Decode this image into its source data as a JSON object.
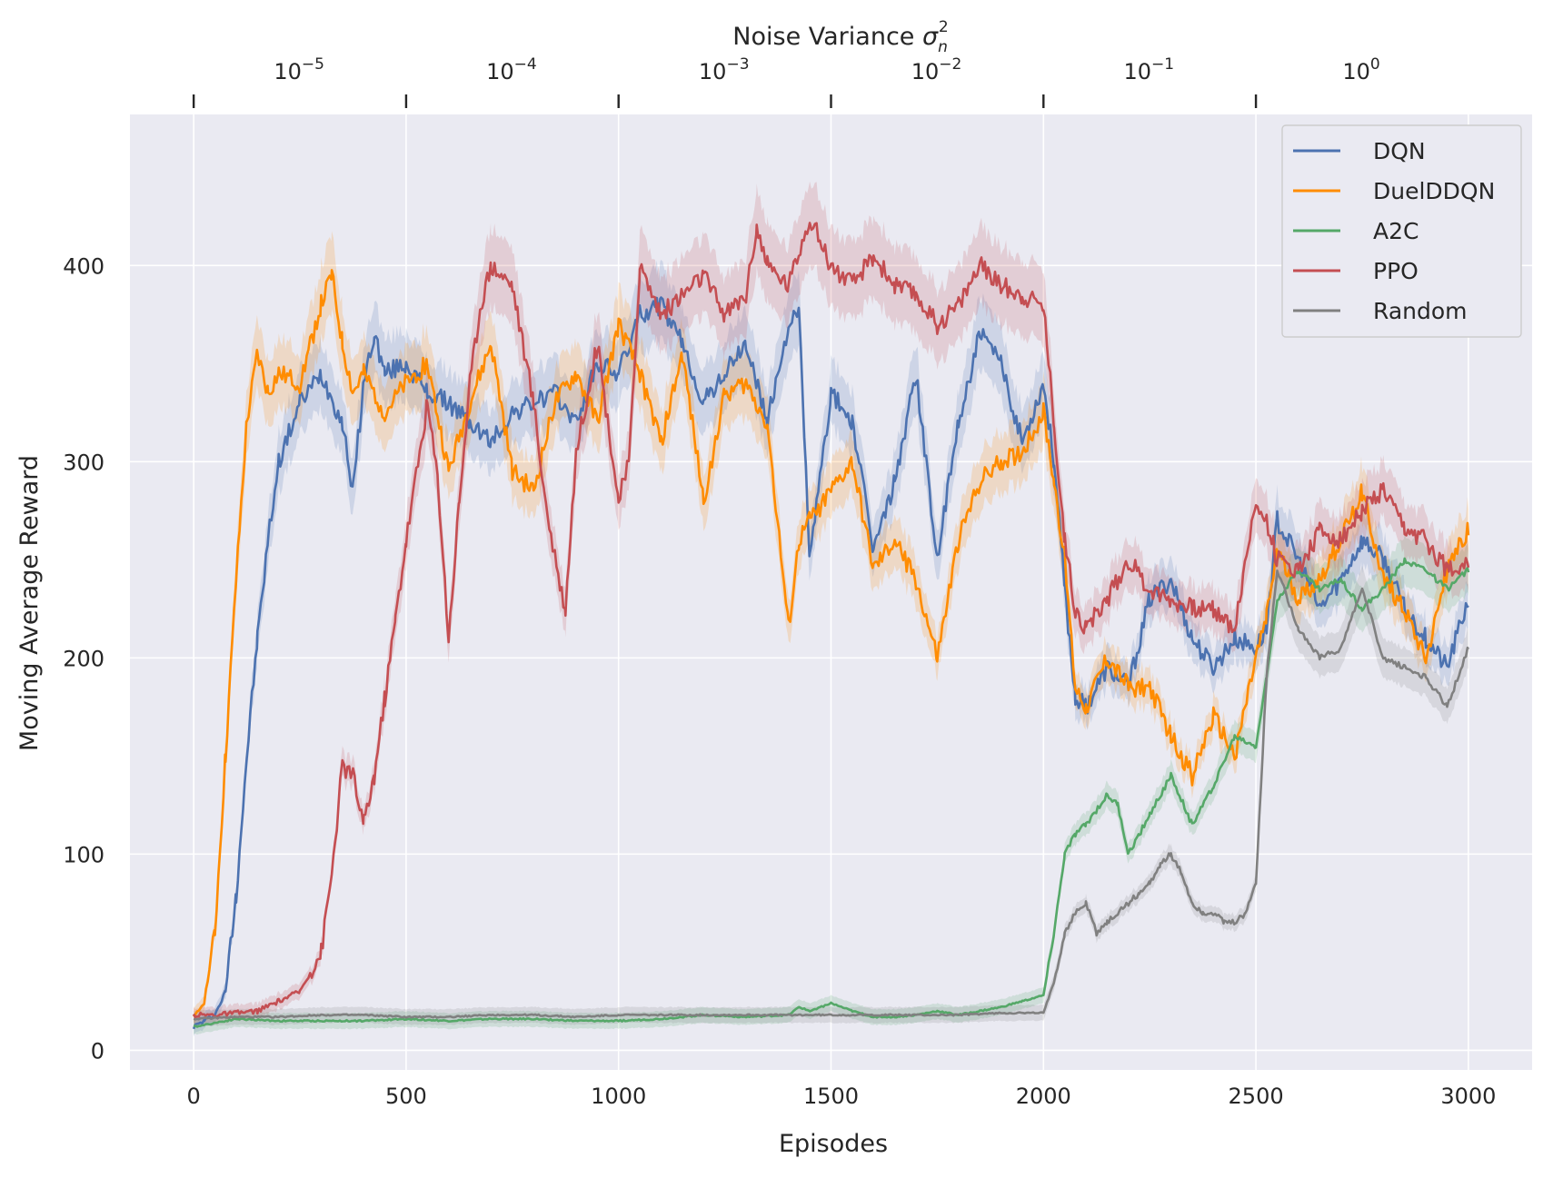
{
  "chart_data": {
    "type": "line",
    "xlabel": "Episodes",
    "ylabel": "Moving Average Reward",
    "xlim": [
      -150,
      3150
    ],
    "ylim": [
      -10,
      477
    ],
    "x_ticks": [
      0,
      500,
      1000,
      1500,
      2000,
      2500,
      3000
    ],
    "x_tick_labels": [
      "0",
      "500",
      "1000",
      "1500",
      "2000",
      "2500",
      "3000"
    ],
    "y_ticks": [
      0,
      100,
      200,
      300,
      400
    ],
    "y_tick_labels": [
      "0",
      "100",
      "200",
      "300",
      "400"
    ],
    "grid": true,
    "legend_position": "top-right",
    "top_axis": {
      "label_text": "Noise Variance ",
      "label_symbol": "σ",
      "label_sub": "n",
      "label_sup": "2",
      "tick_positions": [
        0,
        500,
        1000,
        1500,
        2000,
        2500
      ],
      "tick_labels": [
        {
          "base": "10",
          "exp": "−5"
        },
        {
          "base": "10",
          "exp": "−4"
        },
        {
          "base": "10",
          "exp": "−3"
        },
        {
          "base": "10",
          "exp": "−2"
        },
        {
          "base": "10",
          "exp": "−1"
        },
        {
          "base": "10",
          "exp": "0"
        }
      ]
    },
    "series": [
      {
        "name": "DQN",
        "color": "#4c72b0",
        "x": [
          0,
          25,
          50,
          75,
          100,
          125,
          150,
          175,
          200,
          250,
          300,
          350,
          375,
          400,
          425,
          450,
          500,
          550,
          600,
          650,
          700,
          750,
          800,
          850,
          900,
          950,
          1000,
          1050,
          1100,
          1150,
          1200,
          1250,
          1300,
          1350,
          1400,
          1425,
          1450,
          1500,
          1550,
          1600,
          1650,
          1700,
          1750,
          1800,
          1850,
          1900,
          1950,
          2000,
          2025,
          2050,
          2075,
          2100,
          2150,
          2200,
          2250,
          2300,
          2350,
          2400,
          2450,
          2500,
          2525,
          2550,
          2600,
          2650,
          2700,
          2750,
          2800,
          2850,
          2900,
          2950,
          3000
        ],
        "values": [
          12,
          15,
          18,
          30,
          80,
          150,
          210,
          260,
          300,
          330,
          345,
          320,
          285,
          340,
          365,
          345,
          350,
          335,
          330,
          320,
          310,
          325,
          330,
          335,
          320,
          350,
          345,
          375,
          380,
          360,
          330,
          345,
          360,
          320,
          370,
          375,
          250,
          335,
          320,
          255,
          290,
          345,
          250,
          320,
          365,
          350,
          310,
          340,
          300,
          235,
          180,
          175,
          195,
          185,
          230,
          240,
          210,
          195,
          210,
          205,
          215,
          270,
          250,
          225,
          240,
          260,
          250,
          225,
          210,
          195,
          230
        ]
      },
      {
        "name": "DuelDDQN",
        "color": "#ff8c00",
        "x": [
          0,
          25,
          50,
          75,
          100,
          125,
          150,
          175,
          200,
          250,
          300,
          325,
          350,
          375,
          400,
          450,
          500,
          550,
          600,
          650,
          700,
          750,
          800,
          850,
          900,
          950,
          1000,
          1050,
          1100,
          1150,
          1200,
          1250,
          1300,
          1350,
          1400,
          1425,
          1450,
          1500,
          1550,
          1600,
          1650,
          1700,
          1750,
          1800,
          1850,
          1900,
          1950,
          2000,
          2025,
          2050,
          2075,
          2100,
          2150,
          2200,
          2250,
          2300,
          2350,
          2400,
          2450,
          2500,
          2525,
          2550,
          2600,
          2650,
          2700,
          2750,
          2800,
          2850,
          2900,
          2950,
          3000
        ],
        "values": [
          16,
          25,
          60,
          150,
          240,
          320,
          355,
          335,
          345,
          340,
          380,
          395,
          360,
          335,
          345,
          325,
          340,
          350,
          295,
          330,
          360,
          295,
          285,
          330,
          345,
          320,
          370,
          345,
          310,
          355,
          280,
          335,
          340,
          320,
          215,
          260,
          270,
          285,
          300,
          245,
          260,
          240,
          200,
          260,
          290,
          300,
          305,
          325,
          290,
          250,
          185,
          175,
          200,
          185,
          185,
          160,
          140,
          170,
          150,
          200,
          220,
          255,
          230,
          240,
          260,
          285,
          240,
          225,
          200,
          245,
          265
        ]
      },
      {
        "name": "A2C",
        "color": "#55a868",
        "x": [
          0,
          100,
          200,
          300,
          400,
          500,
          600,
          700,
          800,
          900,
          1000,
          1100,
          1200,
          1300,
          1400,
          1425,
          1450,
          1500,
          1550,
          1600,
          1650,
          1700,
          1750,
          1800,
          1850,
          1900,
          1950,
          2000,
          2025,
          2050,
          2075,
          2100,
          2150,
          2175,
          2200,
          2225,
          2250,
          2300,
          2350,
          2400,
          2450,
          2500,
          2525,
          2550,
          2600,
          2650,
          2700,
          2750,
          2800,
          2850,
          2900,
          2950,
          3000
        ],
        "values": [
          12,
          16,
          15,
          15,
          15,
          16,
          15,
          16,
          16,
          15,
          15,
          16,
          18,
          17,
          18,
          22,
          20,
          24,
          20,
          17,
          17,
          18,
          20,
          18,
          20,
          22,
          25,
          28,
          60,
          100,
          110,
          115,
          130,
          125,
          100,
          110,
          120,
          140,
          115,
          135,
          160,
          155,
          190,
          230,
          245,
          235,
          240,
          225,
          235,
          250,
          245,
          235,
          245
        ]
      },
      {
        "name": "PPO",
        "color": "#c44e52",
        "x": [
          0,
          50,
          100,
          150,
          200,
          250,
          300,
          325,
          350,
          375,
          400,
          425,
          450,
          475,
          500,
          550,
          575,
          600,
          625,
          650,
          675,
          700,
          750,
          800,
          825,
          850,
          875,
          900,
          950,
          1000,
          1025,
          1050,
          1100,
          1150,
          1200,
          1250,
          1300,
          1325,
          1350,
          1400,
          1450,
          1500,
          1550,
          1600,
          1650,
          1700,
          1750,
          1800,
          1850,
          1900,
          1950,
          2000,
          2025,
          2050,
          2075,
          2100,
          2150,
          2200,
          2250,
          2300,
          2350,
          2400,
          2450,
          2500,
          2525,
          2550,
          2600,
          2650,
          2700,
          2750,
          2800,
          2850,
          2900,
          2950,
          3000
        ],
        "values": [
          18,
          18,
          19,
          20,
          25,
          30,
          50,
          90,
          145,
          140,
          115,
          140,
          180,
          220,
          260,
          330,
          290,
          210,
          280,
          340,
          380,
          400,
          390,
          330,
          285,
          250,
          225,
          305,
          360,
          280,
          300,
          400,
          375,
          385,
          395,
          375,
          385,
          420,
          400,
          390,
          425,
          400,
          390,
          405,
          390,
          385,
          370,
          380,
          400,
          390,
          385,
          380,
          320,
          260,
          225,
          215,
          230,
          250,
          235,
          230,
          225,
          225,
          215,
          280,
          270,
          250,
          245,
          265,
          260,
          275,
          285,
          265,
          260,
          245,
          250
        ]
      },
      {
        "name": "Random",
        "color": "#808080",
        "x": [
          0,
          100,
          200,
          300,
          400,
          500,
          600,
          700,
          800,
          900,
          1000,
          1100,
          1200,
          1300,
          1400,
          1500,
          1600,
          1700,
          1800,
          1900,
          2000,
          2025,
          2050,
          2075,
          2100,
          2125,
          2150,
          2175,
          2200,
          2225,
          2250,
          2275,
          2300,
          2325,
          2350,
          2375,
          2400,
          2425,
          2450,
          2475,
          2500,
          2525,
          2550,
          2575,
          2600,
          2650,
          2700,
          2750,
          2800,
          2850,
          2900,
          2950,
          3000
        ],
        "values": [
          16,
          17,
          17,
          18,
          18,
          17,
          17,
          18,
          18,
          17,
          18,
          18,
          18,
          18,
          18,
          18,
          18,
          18,
          18,
          19,
          19,
          35,
          60,
          70,
          75,
          60,
          65,
          70,
          75,
          80,
          85,
          95,
          100,
          90,
          75,
          70,
          70,
          65,
          65,
          70,
          85,
          190,
          245,
          230,
          215,
          200,
          205,
          235,
          200,
          195,
          190,
          175,
          205
        ]
      }
    ]
  }
}
